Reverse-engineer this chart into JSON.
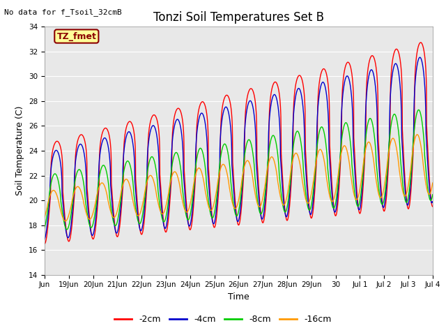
{
  "title": "Tonzi Soil Temperatures Set B",
  "xlabel": "Time",
  "ylabel": "Soil Temperature (C)",
  "annotation_text": "No data for f_Tsoil_32cmB",
  "box_label": "TZ_fmet",
  "ylim": [
    14,
    34
  ],
  "yticks": [
    14,
    16,
    18,
    20,
    22,
    24,
    26,
    28,
    30,
    32,
    34
  ],
  "line_colors": [
    "#ff0000",
    "#0000cc",
    "#00cc00",
    "#ff9900"
  ],
  "line_labels": [
    "-2cm",
    "-4cm",
    "-8cm",
    "-16cm"
  ],
  "bg_color": "#e8e8e8",
  "fig_color": "#ffffff",
  "n_points": 2000
}
